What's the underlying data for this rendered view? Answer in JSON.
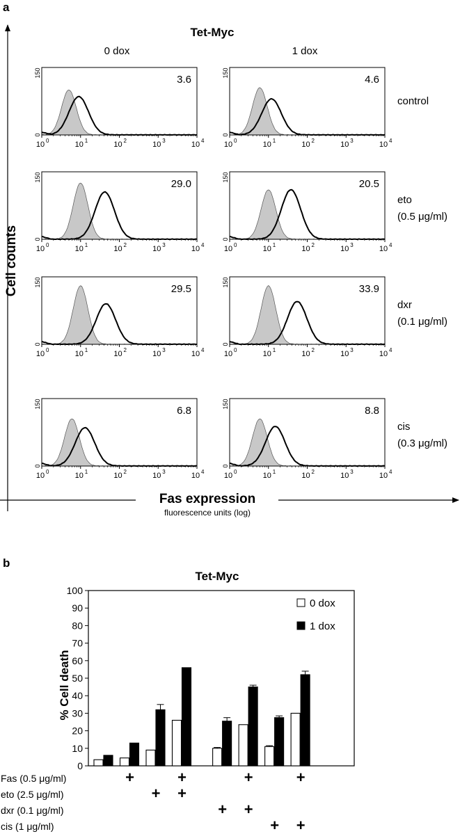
{
  "panel_a": {
    "label": "a",
    "title": "Tet-Myc",
    "columns": [
      "0 dox",
      "1 dox"
    ],
    "y_axis_label": "Cell counts",
    "x_axis_label": "Fas expression",
    "x_axis_sublabel": "fluorescence units (log)",
    "rows": [
      {
        "label_lines": [
          "control"
        ]
      },
      {
        "label_lines": [
          "eto",
          "(0.5 μg/ml)"
        ]
      },
      {
        "label_lines": [
          "dxr",
          "(0.1 μg/ml)"
        ]
      },
      {
        "label_lines": [
          "cis",
          "(0.3 μg/ml)"
        ]
      }
    ]
  },
  "panel_b": {
    "label": "b",
    "title": "Tet-Myc",
    "y_axis_label": "% Cell death",
    "treatments": [
      {
        "label": "Fas (0.5 μg/ml)",
        "marks": [
          false,
          true,
          false,
          true,
          false,
          true,
          false,
          true
        ]
      },
      {
        "label": "eto (2.5 μg/ml)",
        "marks": [
          false,
          false,
          true,
          true,
          false,
          false,
          false,
          false
        ]
      },
      {
        "label": "dxr (0.1 μg/ml)",
        "marks": [
          false,
          false,
          false,
          false,
          true,
          true,
          false,
          false
        ]
      },
      {
        "label": "cis (1 μg/ml)",
        "marks": [
          false,
          false,
          false,
          false,
          false,
          false,
          true,
          true
        ]
      }
    ],
    "plus_symbol": "+"
  },
  "chart_data": [
    {
      "type": "histogram",
      "layout": "4x2 grid of flow cytometry histograms",
      "rows": [
        "control",
        "eto (0.5 μg/ml)",
        "dxr (0.1 μg/ml)",
        "cis (0.3 μg/ml)"
      ],
      "columns": [
        "0 dox",
        "1 dox"
      ],
      "xscale": "log",
      "xlim": [
        1,
        10000
      ],
      "x_ticks": [
        "10^0",
        "10^1",
        "10^2",
        "10^3",
        "10^4"
      ],
      "y_ticks": [
        "0",
        "150"
      ],
      "ylim": [
        0,
        150
      ],
      "panel_values": [
        [
          "3.6",
          "4.6"
        ],
        [
          "29.0",
          "20.5"
        ],
        [
          "29.5",
          "33.9"
        ],
        [
          "6.8",
          "8.8"
        ]
      ],
      "curves": [
        [
          {
            "shaded_peak": 5,
            "shaded_height": 100,
            "outline_peak": 9,
            "outline_height": 85
          },
          {
            "shaded_peak": 6,
            "shaded_height": 105,
            "outline_peak": 12,
            "outline_height": 80
          }
        ],
        [
          {
            "shaded_peak": 10,
            "shaded_height": 125,
            "outline_peak": 42,
            "outline_height": 105
          },
          {
            "shaded_peak": 10,
            "shaded_height": 110,
            "outline_peak": 38,
            "outline_height": 110
          }
        ],
        [
          {
            "shaded_peak": 10,
            "shaded_height": 130,
            "outline_peak": 45,
            "outline_height": 90
          },
          {
            "shaded_peak": 10,
            "shaded_height": 130,
            "outline_peak": 55,
            "outline_height": 95
          }
        ],
        [
          {
            "shaded_peak": 6,
            "shaded_height": 105,
            "outline_peak": 13,
            "outline_height": 85
          },
          {
            "shaded_peak": 6,
            "shaded_height": 105,
            "outline_peak": 15,
            "outline_height": 88
          }
        ]
      ]
    },
    {
      "type": "bar",
      "title": "Tet-Myc",
      "ylabel": "% Cell death",
      "ylim": [
        0,
        100
      ],
      "yticks": [
        0,
        10,
        20,
        30,
        40,
        50,
        60,
        70,
        80,
        90,
        100
      ],
      "legend_position": "top-right",
      "group_positions": [
        0,
        1,
        2,
        3,
        4.55,
        5.55,
        6.55,
        7.55
      ],
      "series": [
        {
          "name": "0 dox",
          "color": "#ffffff",
          "values": [
            3.5,
            4.5,
            9,
            26,
            10,
            23.5,
            11,
            30
          ],
          "errors": [
            0,
            0,
            0,
            0,
            0.5,
            0,
            0.5,
            0
          ]
        },
        {
          "name": "1 dox",
          "color": "#000000",
          "values": [
            6,
            13,
            32,
            56,
            25.5,
            45,
            27.5,
            52
          ],
          "errors": [
            0,
            0,
            3,
            0,
            2,
            1,
            1,
            2
          ]
        }
      ]
    }
  ]
}
